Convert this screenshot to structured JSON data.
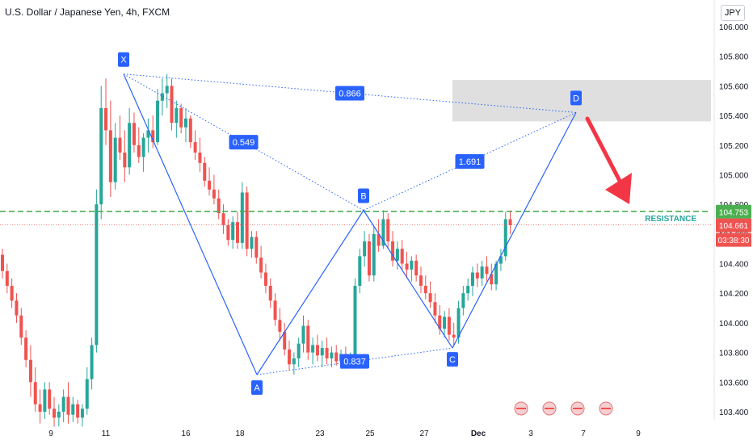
{
  "header": {
    "title": "U.S. Dollar / Japanese Yen, 4h, FXCM",
    "currency": "JPY"
  },
  "colors": {
    "up": "#26a69a",
    "down": "#ef5350",
    "pattern": "#2962ff",
    "resistance": "#4caf50",
    "last_price": "#ef5350",
    "arrow": "#f23645",
    "zone": "#d9d9d9"
  },
  "chart_data": {
    "type": "candlestick",
    "title": "U.S. Dollar / Japanese Yen, 4h, FXCM",
    "timeframe": "4h",
    "ylim": [
      103.3,
      106.1
    ],
    "y_ticks": [
      "103.400",
      "103.600",
      "103.800",
      "104.000",
      "104.200",
      "104.400",
      "104.600",
      "104.800",
      "105.000",
      "105.200",
      "105.400",
      "105.600",
      "105.800",
      "106.000"
    ],
    "x_ticks": [
      "9",
      "11",
      "16",
      "18",
      "23",
      "25",
      "27",
      "Dec",
      "3",
      "7",
      "9"
    ],
    "price_labels": [
      {
        "name": "resistance",
        "text": "104.753"
      },
      {
        "name": "last-price",
        "text": "104.661"
      },
      {
        "name": "countdown",
        "text": "03:38:30"
      }
    ],
    "resistance": {
      "label": "RESISTANCE",
      "value": 104.753
    },
    "last_price": 104.661,
    "harmonic_pattern": {
      "points": [
        {
          "label": "X",
          "value": 105.68
        },
        {
          "label": "A",
          "value": 103.65
        },
        {
          "label": "B",
          "value": 104.76
        },
        {
          "label": "C",
          "value": 103.83
        },
        {
          "label": "D",
          "value": 105.42
        }
      ],
      "ratios": [
        "0.549",
        "0.837",
        "1.691",
        "0.866"
      ]
    },
    "target_zone": [
      105.36,
      105.64
    ],
    "candles_ohlc": [
      [
        104.46,
        104.5,
        104.3,
        104.35
      ],
      [
        104.35,
        104.4,
        104.2,
        104.25
      ],
      [
        104.25,
        104.3,
        104.1,
        104.15
      ],
      [
        104.15,
        104.2,
        104.0,
        104.05
      ],
      [
        104.05,
        104.1,
        103.85,
        103.9
      ],
      [
        103.9,
        103.95,
        103.7,
        103.75
      ],
      [
        103.75,
        103.85,
        103.5,
        103.6
      ],
      [
        103.6,
        103.7,
        103.4,
        103.45
      ],
      [
        103.45,
        103.55,
        103.32,
        103.4
      ],
      [
        103.4,
        103.6,
        103.35,
        103.55
      ],
      [
        103.55,
        103.6,
        103.38,
        103.42
      ],
      [
        103.42,
        103.5,
        103.3,
        103.36
      ],
      [
        103.36,
        103.45,
        103.3,
        103.4
      ],
      [
        103.4,
        103.55,
        103.33,
        103.5
      ],
      [
        103.5,
        103.6,
        103.32,
        103.38
      ],
      [
        103.38,
        103.5,
        103.33,
        103.45
      ],
      [
        103.45,
        103.48,
        103.32,
        103.36
      ],
      [
        103.36,
        103.45,
        103.3,
        103.42
      ],
      [
        103.42,
        103.7,
        103.38,
        103.62
      ],
      [
        103.62,
        103.9,
        103.55,
        103.85
      ],
      [
        103.85,
        104.9,
        103.8,
        104.8
      ],
      [
        104.8,
        105.6,
        104.7,
        105.45
      ],
      [
        105.45,
        105.65,
        105.2,
        105.3
      ],
      [
        105.3,
        105.5,
        104.85,
        104.95
      ],
      [
        104.95,
        105.35,
        104.9,
        105.25
      ],
      [
        105.25,
        105.4,
        105.1,
        105.15
      ],
      [
        105.15,
        105.3,
        104.95,
        105.05
      ],
      [
        105.05,
        105.45,
        105.0,
        105.35
      ],
      [
        105.35,
        105.42,
        105.15,
        105.2
      ],
      [
        105.2,
        105.32,
        105.08,
        105.12
      ],
      [
        105.12,
        105.28,
        105.02,
        105.25
      ],
      [
        105.25,
        105.38,
        105.15,
        105.3
      ],
      [
        105.3,
        105.4,
        105.18,
        105.22
      ],
      [
        105.22,
        105.58,
        105.2,
        105.5
      ],
      [
        105.5,
        105.65,
        105.4,
        105.55
      ],
      [
        105.55,
        105.68,
        105.45,
        105.6
      ],
      [
        105.6,
        105.65,
        105.3,
        105.35
      ],
      [
        105.35,
        105.5,
        105.25,
        105.45
      ],
      [
        105.45,
        105.48,
        105.28,
        105.32
      ],
      [
        105.32,
        105.45,
        105.22,
        105.38
      ],
      [
        105.38,
        105.4,
        105.18,
        105.22
      ],
      [
        105.22,
        105.3,
        105.1,
        105.15
      ],
      [
        105.15,
        105.25,
        105.02,
        105.08
      ],
      [
        105.08,
        105.12,
        104.92,
        104.96
      ],
      [
        104.96,
        105.05,
        104.86,
        104.9
      ],
      [
        104.9,
        105.0,
        104.8,
        104.84
      ],
      [
        104.84,
        104.9,
        104.7,
        104.74
      ],
      [
        104.74,
        104.8,
        104.6,
        104.66
      ],
      [
        104.66,
        104.7,
        104.52,
        104.56
      ],
      [
        104.56,
        104.72,
        104.5,
        104.68
      ],
      [
        104.68,
        104.75,
        104.5,
        104.54
      ],
      [
        104.54,
        104.95,
        104.5,
        104.88
      ],
      [
        104.88,
        104.92,
        104.45,
        104.5
      ],
      [
        104.5,
        104.62,
        104.44,
        104.58
      ],
      [
        104.58,
        104.62,
        104.4,
        104.44
      ],
      [
        104.44,
        104.52,
        104.3,
        104.34
      ],
      [
        104.34,
        104.4,
        104.2,
        104.25
      ],
      [
        104.25,
        104.3,
        104.1,
        104.15
      ],
      [
        104.15,
        104.2,
        103.98,
        104.02
      ],
      [
        104.02,
        104.1,
        103.88,
        103.94
      ],
      [
        103.94,
        104.0,
        103.78,
        103.82
      ],
      [
        103.82,
        103.88,
        103.68,
        103.72
      ],
      [
        103.72,
        103.8,
        103.65,
        103.76
      ],
      [
        103.76,
        103.9,
        103.7,
        103.86
      ],
      [
        103.86,
        104.05,
        103.8,
        103.98
      ],
      [
        103.98,
        104.02,
        103.75,
        103.8
      ],
      [
        103.8,
        103.9,
        103.72,
        103.85
      ],
      [
        103.85,
        103.92,
        103.74,
        103.78
      ],
      [
        103.78,
        103.88,
        103.7,
        103.83
      ],
      [
        103.83,
        103.9,
        103.72,
        103.76
      ],
      [
        103.76,
        103.84,
        103.7,
        103.8
      ],
      [
        103.8,
        103.85,
        103.71,
        103.74
      ],
      [
        103.74,
        103.82,
        103.69,
        103.79
      ],
      [
        103.79,
        103.84,
        103.72,
        103.75
      ],
      [
        103.75,
        103.8,
        103.7,
        103.78
      ],
      [
        103.78,
        104.3,
        103.76,
        104.25
      ],
      [
        104.25,
        104.5,
        104.2,
        104.45
      ],
      [
        104.45,
        104.62,
        104.38,
        104.55
      ],
      [
        104.55,
        104.6,
        104.28,
        104.32
      ],
      [
        104.32,
        104.65,
        104.28,
        104.6
      ],
      [
        104.6,
        104.7,
        104.48,
        104.52
      ],
      [
        104.52,
        104.76,
        104.5,
        104.7
      ],
      [
        104.7,
        104.74,
        104.5,
        104.55
      ],
      [
        104.55,
        104.62,
        104.38,
        104.42
      ],
      [
        104.42,
        104.55,
        104.36,
        104.5
      ],
      [
        104.5,
        104.56,
        104.36,
        104.4
      ],
      [
        104.4,
        104.48,
        104.3,
        104.36
      ],
      [
        104.36,
        104.45,
        104.28,
        104.42
      ],
      [
        104.42,
        104.46,
        104.28,
        104.32
      ],
      [
        104.32,
        104.38,
        104.2,
        104.25
      ],
      [
        104.25,
        104.32,
        104.16,
        104.2
      ],
      [
        104.2,
        104.28,
        104.1,
        104.14
      ],
      [
        104.14,
        104.2,
        104.0,
        104.05
      ],
      [
        104.05,
        104.12,
        103.92,
        103.96
      ],
      [
        103.96,
        104.08,
        103.9,
        104.04
      ],
      [
        104.04,
        104.1,
        103.88,
        103.92
      ],
      [
        103.92,
        104.0,
        103.84,
        103.9
      ],
      [
        103.9,
        104.15,
        103.86,
        104.1
      ],
      [
        104.1,
        104.25,
        104.05,
        104.2
      ],
      [
        104.2,
        104.3,
        104.15,
        104.25
      ],
      [
        104.25,
        104.38,
        104.18,
        104.34
      ],
      [
        104.34,
        104.4,
        104.24,
        104.3
      ],
      [
        104.3,
        104.42,
        104.25,
        104.38
      ],
      [
        104.38,
        104.45,
        104.28,
        104.33
      ],
      [
        104.33,
        104.4,
        104.22,
        104.26
      ],
      [
        104.26,
        104.42,
        104.22,
        104.4
      ],
      [
        104.4,
        104.5,
        104.35,
        104.45
      ],
      [
        104.45,
        104.75,
        104.42,
        104.7
      ],
      [
        104.7,
        104.76,
        104.6,
        104.66
      ]
    ]
  }
}
